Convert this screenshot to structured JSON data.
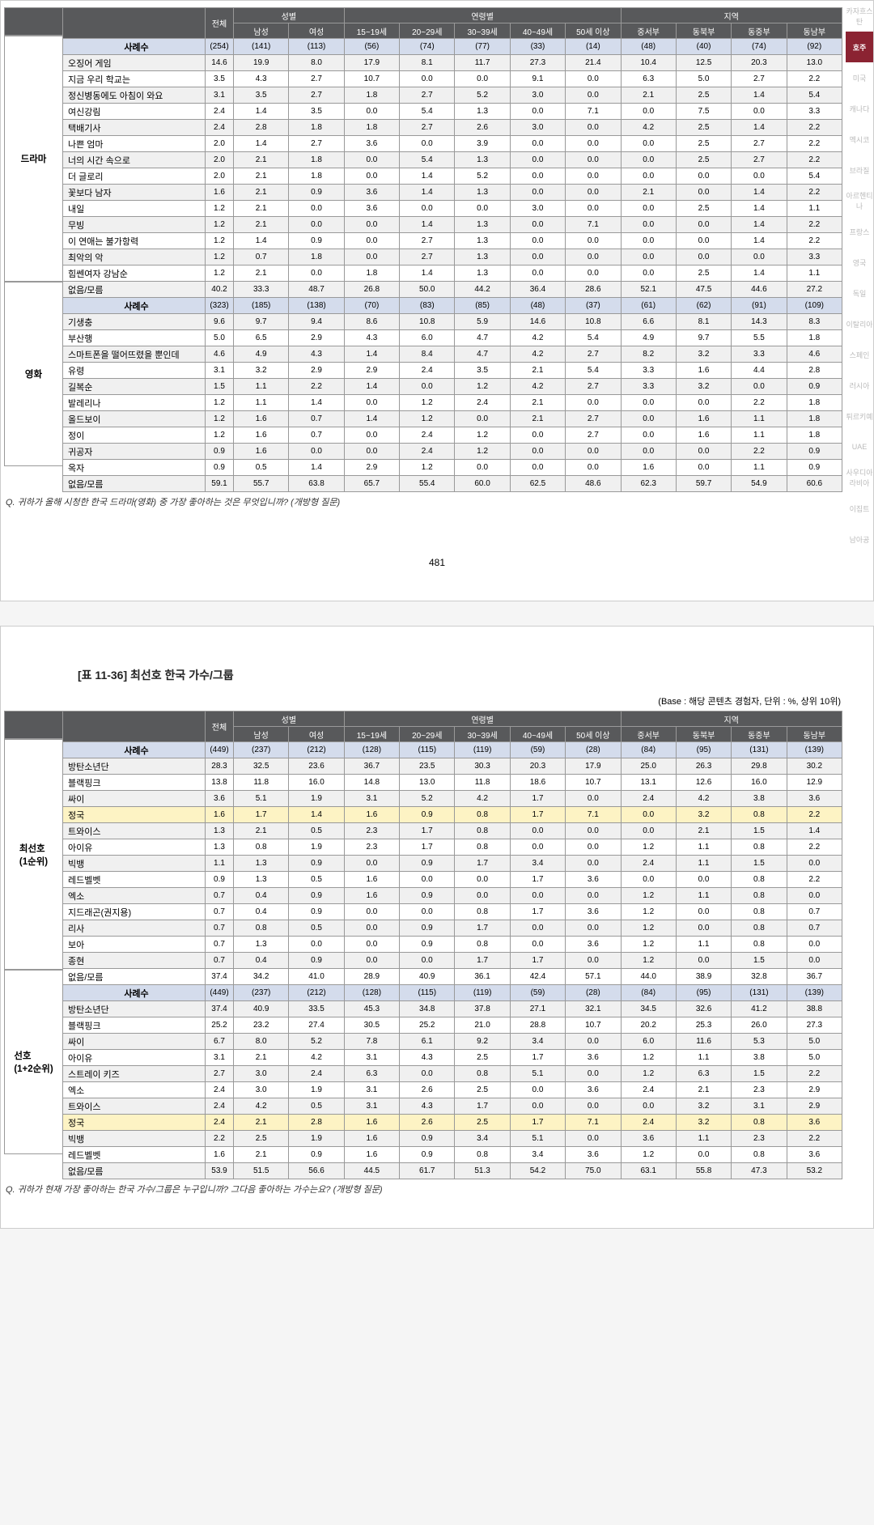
{
  "colors": {
    "header_bg": "#58595b",
    "header_fg": "#ffffff",
    "case_bg": "#d4dcec",
    "alt_bg": "#f0f0f0",
    "highlight_bg": "#fdf3c4",
    "side_active_bg": "#8b2332",
    "side_inactive_fg": "#bbbbbb",
    "border": "#999999"
  },
  "header": {
    "groups": [
      "전체",
      "성별",
      "연령별",
      "지역"
    ],
    "cols": [
      "전체",
      "남성",
      "여성",
      "15~19세",
      "20~29세",
      "30~39세",
      "40~49세",
      "50세 이상",
      "중서부",
      "동북부",
      "동중부",
      "동남부"
    ]
  },
  "page_number": "481",
  "q1": "Q. 귀하가 올해 시청한 한국 드라마(영화) 중 가장 좋아하는 것은 무엇입니까? (개방형 질문)",
  "q2": "Q. 귀하가 현재 가장 좋아하는 한국 가수/그룹은 누구입니까? 그다음 좋아하는 가수는요? (개방형 질문)",
  "title2": "[표 11-36] 최선호 한국 가수/그룹",
  "base2": "(Base : 해당 콘텐츠 경험자, 단위 : %, 상위 10위)",
  "side_tabs": [
    "카자흐스탄",
    "호주",
    "미국",
    "캐나다",
    "멕시코",
    "브라질",
    "아르헨티나",
    "프랑스",
    "영국",
    "독일",
    "이탈리아",
    "스페인",
    "러시아",
    "튀르키예",
    "UAE",
    "사우디아라비아",
    "이집트",
    "남아공"
  ],
  "side_active": 1,
  "sections": [
    {
      "cat": "드라마",
      "rows": [
        {
          "case": true,
          "name": "사례수",
          "v": [
            "(254)",
            "(141)",
            "(113)",
            "(56)",
            "(74)",
            "(77)",
            "(33)",
            "(14)",
            "(48)",
            "(40)",
            "(74)",
            "(92)"
          ]
        },
        {
          "name": "오징어 게임",
          "v": [
            "14.6",
            "19.9",
            "8.0",
            "17.9",
            "8.1",
            "11.7",
            "27.3",
            "21.4",
            "10.4",
            "12.5",
            "20.3",
            "13.0"
          ]
        },
        {
          "name": "지금 우리 학교는",
          "v": [
            "3.5",
            "4.3",
            "2.7",
            "10.7",
            "0.0",
            "0.0",
            "9.1",
            "0.0",
            "6.3",
            "5.0",
            "2.7",
            "2.2"
          ]
        },
        {
          "name": "정신병동에도 아침이 와요",
          "v": [
            "3.1",
            "3.5",
            "2.7",
            "1.8",
            "2.7",
            "5.2",
            "3.0",
            "0.0",
            "2.1",
            "2.5",
            "1.4",
            "5.4"
          ]
        },
        {
          "name": "여신강림",
          "v": [
            "2.4",
            "1.4",
            "3.5",
            "0.0",
            "5.4",
            "1.3",
            "0.0",
            "7.1",
            "0.0",
            "7.5",
            "0.0",
            "3.3"
          ]
        },
        {
          "name": "택배기사",
          "v": [
            "2.4",
            "2.8",
            "1.8",
            "1.8",
            "2.7",
            "2.6",
            "3.0",
            "0.0",
            "4.2",
            "2.5",
            "1.4",
            "2.2"
          ]
        },
        {
          "name": "나쁜 엄마",
          "v": [
            "2.0",
            "1.4",
            "2.7",
            "3.6",
            "0.0",
            "3.9",
            "0.0",
            "0.0",
            "0.0",
            "2.5",
            "2.7",
            "2.2"
          ]
        },
        {
          "name": "너의 시간 속으로",
          "v": [
            "2.0",
            "2.1",
            "1.8",
            "0.0",
            "5.4",
            "1.3",
            "0.0",
            "0.0",
            "0.0",
            "2.5",
            "2.7",
            "2.2"
          ]
        },
        {
          "name": "더 글로리",
          "v": [
            "2.0",
            "2.1",
            "1.8",
            "0.0",
            "1.4",
            "5.2",
            "0.0",
            "0.0",
            "0.0",
            "0.0",
            "0.0",
            "5.4"
          ]
        },
        {
          "name": "꽃보다 남자",
          "v": [
            "1.6",
            "2.1",
            "0.9",
            "3.6",
            "1.4",
            "1.3",
            "0.0",
            "0.0",
            "2.1",
            "0.0",
            "1.4",
            "2.2"
          ]
        },
        {
          "name": "내일",
          "v": [
            "1.2",
            "2.1",
            "0.0",
            "3.6",
            "0.0",
            "0.0",
            "3.0",
            "0.0",
            "0.0",
            "2.5",
            "1.4",
            "1.1"
          ]
        },
        {
          "name": "무빙",
          "v": [
            "1.2",
            "2.1",
            "0.0",
            "0.0",
            "1.4",
            "1.3",
            "0.0",
            "7.1",
            "0.0",
            "0.0",
            "1.4",
            "2.2"
          ]
        },
        {
          "name": "이 연애는 불가항력",
          "v": [
            "1.2",
            "1.4",
            "0.9",
            "0.0",
            "2.7",
            "1.3",
            "0.0",
            "0.0",
            "0.0",
            "0.0",
            "1.4",
            "2.2"
          ]
        },
        {
          "name": "최악의 악",
          "v": [
            "1.2",
            "0.7",
            "1.8",
            "0.0",
            "2.7",
            "1.3",
            "0.0",
            "0.0",
            "0.0",
            "0.0",
            "0.0",
            "3.3"
          ]
        },
        {
          "name": "힘쎈여자 강남순",
          "v": [
            "1.2",
            "2.1",
            "0.0",
            "1.8",
            "1.4",
            "1.3",
            "0.0",
            "0.0",
            "0.0",
            "2.5",
            "1.4",
            "1.1"
          ]
        },
        {
          "name": "없음/모름",
          "v": [
            "40.2",
            "33.3",
            "48.7",
            "26.8",
            "50.0",
            "44.2",
            "36.4",
            "28.6",
            "52.1",
            "47.5",
            "44.6",
            "27.2"
          ]
        }
      ]
    },
    {
      "cat": "영화",
      "rows": [
        {
          "case": true,
          "name": "사례수",
          "v": [
            "(323)",
            "(185)",
            "(138)",
            "(70)",
            "(83)",
            "(85)",
            "(48)",
            "(37)",
            "(61)",
            "(62)",
            "(91)",
            "(109)"
          ]
        },
        {
          "name": "기생충",
          "v": [
            "9.6",
            "9.7",
            "9.4",
            "8.6",
            "10.8",
            "5.9",
            "14.6",
            "10.8",
            "6.6",
            "8.1",
            "14.3",
            "8.3"
          ]
        },
        {
          "name": "부산행",
          "v": [
            "5.0",
            "6.5",
            "2.9",
            "4.3",
            "6.0",
            "4.7",
            "4.2",
            "5.4",
            "4.9",
            "9.7",
            "5.5",
            "1.8"
          ]
        },
        {
          "name": "스마트폰을 떨어뜨렸을 뿐인데",
          "v": [
            "4.6",
            "4.9",
            "4.3",
            "1.4",
            "8.4",
            "4.7",
            "4.2",
            "2.7",
            "8.2",
            "3.2",
            "3.3",
            "4.6"
          ]
        },
        {
          "name": "유령",
          "v": [
            "3.1",
            "3.2",
            "2.9",
            "2.9",
            "2.4",
            "3.5",
            "2.1",
            "5.4",
            "3.3",
            "1.6",
            "4.4",
            "2.8"
          ]
        },
        {
          "name": "길복순",
          "v": [
            "1.5",
            "1.1",
            "2.2",
            "1.4",
            "0.0",
            "1.2",
            "4.2",
            "2.7",
            "3.3",
            "3.2",
            "0.0",
            "0.9"
          ]
        },
        {
          "name": "발레리나",
          "v": [
            "1.2",
            "1.1",
            "1.4",
            "0.0",
            "1.2",
            "2.4",
            "2.1",
            "0.0",
            "0.0",
            "0.0",
            "2.2",
            "1.8"
          ]
        },
        {
          "name": "올드보이",
          "v": [
            "1.2",
            "1.6",
            "0.7",
            "1.4",
            "1.2",
            "0.0",
            "2.1",
            "2.7",
            "0.0",
            "1.6",
            "1.1",
            "1.8"
          ]
        },
        {
          "name": "정이",
          "v": [
            "1.2",
            "1.6",
            "0.7",
            "0.0",
            "2.4",
            "1.2",
            "0.0",
            "2.7",
            "0.0",
            "1.6",
            "1.1",
            "1.8"
          ]
        },
        {
          "name": "귀공자",
          "v": [
            "0.9",
            "1.6",
            "0.0",
            "0.0",
            "2.4",
            "1.2",
            "0.0",
            "0.0",
            "0.0",
            "0.0",
            "2.2",
            "0.9"
          ]
        },
        {
          "name": "옥자",
          "v": [
            "0.9",
            "0.5",
            "1.4",
            "2.9",
            "1.2",
            "0.0",
            "0.0",
            "0.0",
            "1.6",
            "0.0",
            "1.1",
            "0.9"
          ]
        },
        {
          "name": "없음/모름",
          "v": [
            "59.1",
            "55.7",
            "63.8",
            "65.7",
            "55.4",
            "60.0",
            "62.5",
            "48.6",
            "62.3",
            "59.7",
            "54.9",
            "60.6"
          ]
        }
      ]
    }
  ],
  "sections2": [
    {
      "cat": "최선호\n(1순위)",
      "rows": [
        {
          "case": true,
          "name": "사례수",
          "v": [
            "(449)",
            "(237)",
            "(212)",
            "(128)",
            "(115)",
            "(119)",
            "(59)",
            "(28)",
            "(84)",
            "(95)",
            "(131)",
            "(139)"
          ]
        },
        {
          "name": "방탄소년단",
          "v": [
            "28.3",
            "32.5",
            "23.6",
            "36.7",
            "23.5",
            "30.3",
            "20.3",
            "17.9",
            "25.0",
            "26.3",
            "29.8",
            "30.2"
          ]
        },
        {
          "name": "블랙핑크",
          "v": [
            "13.8",
            "11.8",
            "16.0",
            "14.8",
            "13.0",
            "11.8",
            "18.6",
            "10.7",
            "13.1",
            "12.6",
            "16.0",
            "12.9"
          ]
        },
        {
          "name": "싸이",
          "v": [
            "3.6",
            "5.1",
            "1.9",
            "3.1",
            "5.2",
            "4.2",
            "1.7",
            "0.0",
            "2.4",
            "4.2",
            "3.8",
            "3.6"
          ]
        },
        {
          "hl": true,
          "name": "정국",
          "v": [
            "1.6",
            "1.7",
            "1.4",
            "1.6",
            "0.9",
            "0.8",
            "1.7",
            "7.1",
            "0.0",
            "3.2",
            "0.8",
            "2.2"
          ]
        },
        {
          "name": "트와이스",
          "v": [
            "1.3",
            "2.1",
            "0.5",
            "2.3",
            "1.7",
            "0.8",
            "0.0",
            "0.0",
            "0.0",
            "2.1",
            "1.5",
            "1.4"
          ]
        },
        {
          "name": "아이유",
          "v": [
            "1.3",
            "0.8",
            "1.9",
            "2.3",
            "1.7",
            "0.8",
            "0.0",
            "0.0",
            "1.2",
            "1.1",
            "0.8",
            "2.2"
          ]
        },
        {
          "name": "빅뱅",
          "v": [
            "1.1",
            "1.3",
            "0.9",
            "0.0",
            "0.9",
            "1.7",
            "3.4",
            "0.0",
            "2.4",
            "1.1",
            "1.5",
            "0.0"
          ]
        },
        {
          "name": "레드벨벳",
          "v": [
            "0.9",
            "1.3",
            "0.5",
            "1.6",
            "0.0",
            "0.0",
            "1.7",
            "3.6",
            "0.0",
            "0.0",
            "0.8",
            "2.2"
          ]
        },
        {
          "name": "엑소",
          "v": [
            "0.7",
            "0.4",
            "0.9",
            "1.6",
            "0.9",
            "0.0",
            "0.0",
            "0.0",
            "1.2",
            "1.1",
            "0.8",
            "0.0"
          ]
        },
        {
          "name": "지드래곤(권지용)",
          "v": [
            "0.7",
            "0.4",
            "0.9",
            "0.0",
            "0.0",
            "0.8",
            "1.7",
            "3.6",
            "1.2",
            "0.0",
            "0.8",
            "0.7"
          ]
        },
        {
          "name": "리사",
          "v": [
            "0.7",
            "0.8",
            "0.5",
            "0.0",
            "0.9",
            "1.7",
            "0.0",
            "0.0",
            "1.2",
            "0.0",
            "0.8",
            "0.7"
          ]
        },
        {
          "name": "보아",
          "v": [
            "0.7",
            "1.3",
            "0.0",
            "0.0",
            "0.9",
            "0.8",
            "0.0",
            "3.6",
            "1.2",
            "1.1",
            "0.8",
            "0.0"
          ]
        },
        {
          "name": "종현",
          "v": [
            "0.7",
            "0.4",
            "0.9",
            "0.0",
            "0.0",
            "1.7",
            "1.7",
            "0.0",
            "1.2",
            "0.0",
            "1.5",
            "0.0"
          ]
        },
        {
          "name": "없음/모름",
          "v": [
            "37.4",
            "34.2",
            "41.0",
            "28.9",
            "40.9",
            "36.1",
            "42.4",
            "57.1",
            "44.0",
            "38.9",
            "32.8",
            "36.7"
          ]
        }
      ]
    },
    {
      "cat": "선호\n(1+2순위)",
      "rows": [
        {
          "case": true,
          "name": "사례수",
          "v": [
            "(449)",
            "(237)",
            "(212)",
            "(128)",
            "(115)",
            "(119)",
            "(59)",
            "(28)",
            "(84)",
            "(95)",
            "(131)",
            "(139)"
          ]
        },
        {
          "name": "방탄소년단",
          "v": [
            "37.4",
            "40.9",
            "33.5",
            "45.3",
            "34.8",
            "37.8",
            "27.1",
            "32.1",
            "34.5",
            "32.6",
            "41.2",
            "38.8"
          ]
        },
        {
          "name": "블랙핑크",
          "v": [
            "25.2",
            "23.2",
            "27.4",
            "30.5",
            "25.2",
            "21.0",
            "28.8",
            "10.7",
            "20.2",
            "25.3",
            "26.0",
            "27.3"
          ]
        },
        {
          "name": "싸이",
          "v": [
            "6.7",
            "8.0",
            "5.2",
            "7.8",
            "6.1",
            "9.2",
            "3.4",
            "0.0",
            "6.0",
            "11.6",
            "5.3",
            "5.0"
          ]
        },
        {
          "name": "아이유",
          "v": [
            "3.1",
            "2.1",
            "4.2",
            "3.1",
            "4.3",
            "2.5",
            "1.7",
            "3.6",
            "1.2",
            "1.1",
            "3.8",
            "5.0"
          ]
        },
        {
          "name": "스트레이 키즈",
          "v": [
            "2.7",
            "3.0",
            "2.4",
            "6.3",
            "0.0",
            "0.8",
            "5.1",
            "0.0",
            "1.2",
            "6.3",
            "1.5",
            "2.2"
          ]
        },
        {
          "name": "엑소",
          "v": [
            "2.4",
            "3.0",
            "1.9",
            "3.1",
            "2.6",
            "2.5",
            "0.0",
            "3.6",
            "2.4",
            "2.1",
            "2.3",
            "2.9"
          ]
        },
        {
          "name": "트와이스",
          "v": [
            "2.4",
            "4.2",
            "0.5",
            "3.1",
            "4.3",
            "1.7",
            "0.0",
            "0.0",
            "0.0",
            "3.2",
            "3.1",
            "2.9"
          ]
        },
        {
          "hl": true,
          "name": "정국",
          "v": [
            "2.4",
            "2.1",
            "2.8",
            "1.6",
            "2.6",
            "2.5",
            "1.7",
            "7.1",
            "2.4",
            "3.2",
            "0.8",
            "3.6"
          ]
        },
        {
          "name": "빅뱅",
          "v": [
            "2.2",
            "2.5",
            "1.9",
            "1.6",
            "0.9",
            "3.4",
            "5.1",
            "0.0",
            "3.6",
            "1.1",
            "2.3",
            "2.2"
          ]
        },
        {
          "name": "레드벨벳",
          "v": [
            "1.6",
            "2.1",
            "0.9",
            "1.6",
            "0.9",
            "0.8",
            "3.4",
            "3.6",
            "1.2",
            "0.0",
            "0.8",
            "3.6"
          ]
        },
        {
          "name": "없음/모름",
          "v": [
            "53.9",
            "51.5",
            "56.6",
            "44.5",
            "61.7",
            "51.3",
            "54.2",
            "75.0",
            "63.1",
            "55.8",
            "47.3",
            "53.2"
          ]
        }
      ]
    }
  ]
}
